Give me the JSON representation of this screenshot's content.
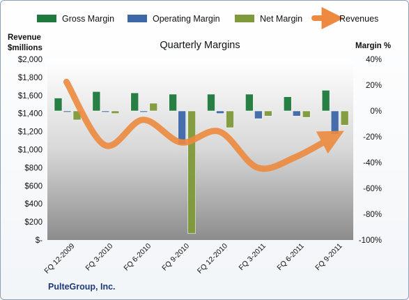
{
  "chart_data": {
    "type": "bar",
    "title": "Quarterly Margins",
    "company": "PulteGroup, Inc.",
    "left_axis": {
      "label_line1": "Revenue",
      "label_line2": "$millions",
      "ylim": [
        0,
        2000
      ],
      "ticks": [
        0,
        200,
        400,
        600,
        800,
        1000,
        1200,
        1400,
        1600,
        1800,
        2000
      ],
      "tick_labels": [
        "$-",
        "$200",
        "$400",
        "$600",
        "$800",
        "$1,000",
        "$1,200",
        "$1,400",
        "$1,600",
        "$1,800",
        "$2,000"
      ]
    },
    "right_axis": {
      "label": "Margin %",
      "ylim": [
        -100,
        40
      ],
      "ticks": [
        -100,
        -80,
        -60,
        -40,
        -20,
        0,
        20,
        40
      ],
      "tick_labels": [
        "-100%",
        "-80%",
        "-60%",
        "-40%",
        "-20%",
        "0%",
        "20%",
        "40%"
      ]
    },
    "categories": [
      "FQ 12-2009",
      "FQ 3-2010",
      "FQ 6-2010",
      "FQ 9-2010",
      "FQ 12-2010",
      "FQ 3-2011",
      "FQ 6-2011",
      "FQ 9-2011"
    ],
    "series": [
      {
        "name": "Gross Margin",
        "axis": "right",
        "color": "#1e7a3c",
        "values": [
          10,
          15,
          14,
          13,
          13,
          13,
          11,
          16
        ]
      },
      {
        "name": "Operating Margin",
        "axis": "right",
        "color": "#3d68a8",
        "values": [
          -1,
          -1,
          -1,
          -26,
          -2,
          -6,
          -4,
          -18
        ]
      },
      {
        "name": "Net Margin",
        "axis": "right",
        "color": "#7f9a3a",
        "values": [
          -7,
          -2,
          6,
          -95,
          -13,
          -4,
          -5,
          -11
        ]
      },
      {
        "name": "Revenues",
        "axis": "left",
        "color": "#ed8a3f",
        "type": "line",
        "values": [
          1750,
          1050,
          1330,
          1080,
          1200,
          800,
          920,
          1150
        ]
      }
    ],
    "legend_position": "top",
    "grid": false
  }
}
